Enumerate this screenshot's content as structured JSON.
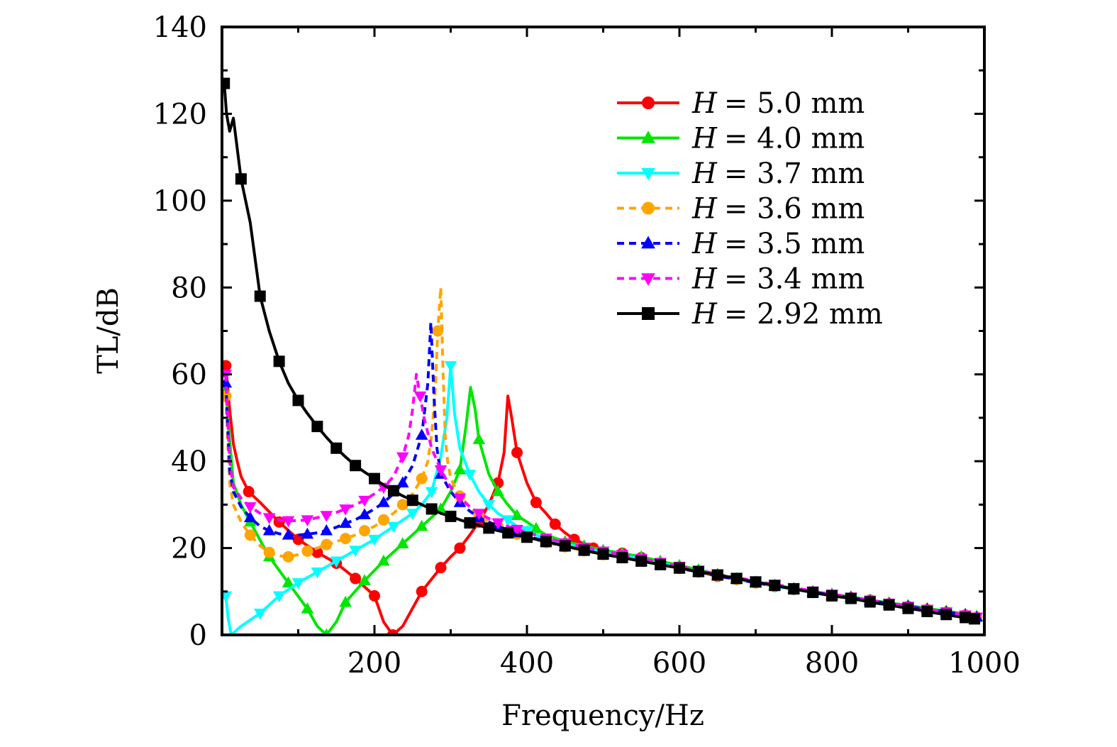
{
  "chart_data": {
    "type": "line",
    "title": "",
    "xlabel": "Frequency/Hz",
    "ylabel": "TL/dB",
    "xlim": [
      0,
      1000
    ],
    "ylim": [
      0,
      140
    ],
    "xticks": [
      200,
      400,
      600,
      800,
      1000
    ],
    "yticks": [
      0,
      20,
      40,
      60,
      80,
      100,
      120,
      140
    ],
    "grid": false,
    "legend_position": "top-right",
    "series": [
      {
        "name": "H = 5.0 mm",
        "name_var": "H",
        "name_value": "= 5.0 mm",
        "color": "#ff0000",
        "marker": "circle",
        "dash": "solid",
        "x": [
          5,
          10,
          15,
          20,
          25,
          35,
          50,
          75,
          100,
          125,
          150,
          175,
          200,
          212,
          224,
          237,
          262,
          287,
          300,
          312,
          325,
          337,
          350,
          362,
          370,
          375,
          380,
          387,
          400,
          412,
          425,
          437,
          450,
          462,
          475,
          487,
          500,
          525,
          550,
          575,
          600,
          625,
          650,
          675,
          700,
          725,
          750,
          775,
          800,
          825,
          850,
          875,
          900,
          925,
          950,
          975,
          990
        ],
        "y": [
          62,
          52,
          44,
          40,
          36.5,
          33,
          30.5,
          26,
          22,
          19,
          16.5,
          13,
          9,
          3,
          0,
          2,
          10,
          15.5,
          18,
          20,
          23,
          26,
          30,
          35,
          42,
          55,
          50,
          42,
          35,
          30.5,
          28,
          25.5,
          23.5,
          22,
          21,
          20,
          19.5,
          18.8,
          17.8,
          16.5,
          15.5,
          14.5,
          13.5,
          12.8,
          12,
          11.2,
          10.5,
          9.8,
          9.2,
          8.5,
          8,
          7.2,
          6.5,
          5.8,
          5.2,
          4.6,
          4
        ]
      },
      {
        "name": "H = 4.0 mm",
        "name_var": "H",
        "name_value": "= 4.0 mm",
        "color": "#00e600",
        "marker": "triangle-up",
        "dash": "solid",
        "x": [
          5,
          10,
          15,
          25,
          37,
          62,
          87,
          112,
          125,
          137,
          150,
          162,
          187,
          212,
          237,
          262,
          287,
          300,
          312,
          320,
          326,
          332,
          337,
          350,
          362,
          375,
          387,
          400,
          412,
          425,
          450,
          475,
          500,
          525,
          550,
          575,
          600,
          625,
          650,
          675,
          700,
          725,
          750,
          775,
          800,
          825,
          850,
          875,
          900,
          925,
          950,
          975,
          990
        ],
        "y": [
          56,
          45,
          35,
          30,
          26,
          18,
          12,
          6,
          2,
          0,
          3,
          7.5,
          12.5,
          17,
          21,
          25,
          29,
          33,
          38,
          48,
          57,
          52,
          45,
          37,
          33,
          30,
          27.5,
          26,
          24.5,
          23,
          21.5,
          20.5,
          19.5,
          18.8,
          18,
          17,
          16,
          15,
          14,
          13,
          12.2,
          11.5,
          10.7,
          10,
          9.4,
          8.8,
          8,
          7.4,
          6.8,
          6.1,
          5.5,
          4.8,
          4.3
        ]
      },
      {
        "name": "H = 3.7 mm",
        "name_var": "H",
        "name_value": "= 3.7 mm",
        "color": "#00ffff",
        "marker": "triangle-down",
        "dash": "solid",
        "x": [
          5,
          8,
          12,
          25,
          50,
          75,
          100,
          125,
          150,
          175,
          200,
          225,
          250,
          262,
          275,
          287,
          295,
          300,
          305,
          312,
          325,
          337,
          350,
          362,
          375,
          387,
          400,
          425,
          450,
          475,
          500,
          525,
          550,
          575,
          600,
          625,
          650,
          675,
          700,
          725,
          750,
          775,
          800,
          825,
          850,
          875,
          900,
          925,
          950,
          975,
          990
        ],
        "y": [
          9,
          4,
          0,
          2,
          5,
          9,
          12,
          14.5,
          17,
          19.5,
          22,
          25,
          28,
          30,
          33,
          41,
          50,
          62,
          51,
          43,
          37,
          33,
          30,
          28,
          26.5,
          25,
          24,
          22,
          21,
          20,
          19,
          18.3,
          17.5,
          16.5,
          15.5,
          14.5,
          13.7,
          12.8,
          12,
          11.2,
          10.5,
          9.8,
          9.2,
          8.5,
          7.8,
          7.2,
          6.5,
          5.8,
          5.2,
          4.5,
          4
        ]
      },
      {
        "name": "H = 3.6 mm",
        "name_var": "H",
        "name_value": "= 3.6 mm",
        "color": "#ffa500",
        "marker": "circle",
        "dash": "dash",
        "x": [
          5,
          10,
          15,
          25,
          37,
          50,
          62,
          75,
          87,
          100,
          112,
          125,
          137,
          150,
          162,
          175,
          187,
          200,
          212,
          225,
          237,
          250,
          262,
          270,
          275,
          280,
          283,
          287,
          290,
          293,
          296,
          300,
          312,
          325,
          337,
          350,
          362,
          375,
          387,
          400,
          425,
          450,
          475,
          500,
          525,
          550,
          575,
          600,
          625,
          650,
          675,
          700,
          725,
          750,
          775,
          800,
          825,
          850,
          875,
          900,
          925,
          950,
          975,
          990
        ],
        "y": [
          55,
          35,
          30,
          26,
          23,
          20.5,
          19,
          18.2,
          18,
          18.5,
          19.3,
          20,
          20.8,
          21.5,
          22.2,
          23,
          24,
          25,
          26.5,
          28,
          30,
          32.5,
          36,
          40,
          46,
          57,
          70,
          80,
          60,
          45,
          40,
          36,
          32,
          29.5,
          27.5,
          26,
          25,
          24,
          23.2,
          22.5,
          21.3,
          20.3,
          19.4,
          18.5,
          17.8,
          17,
          16.2,
          15.3,
          14.5,
          13.6,
          12.8,
          12,
          11.3,
          10.6,
          9.9,
          9.2,
          8.6,
          7.9,
          7.2,
          6.6,
          5.9,
          5.3,
          4.6,
          4.1
        ]
      },
      {
        "name": "H = 3.5 mm",
        "name_var": "H",
        "name_value": "= 3.5 mm",
        "color": "#0000ff",
        "marker": "triangle-up",
        "dash": "dash",
        "x": [
          5,
          10,
          15,
          25,
          37,
          50,
          62,
          75,
          87,
          100,
          112,
          125,
          137,
          150,
          162,
          175,
          187,
          200,
          212,
          225,
          237,
          250,
          262,
          270,
          274,
          278,
          282,
          287,
          300,
          312,
          325,
          337,
          350,
          362,
          375,
          387,
          400,
          425,
          450,
          475,
          500,
          525,
          550,
          575,
          600,
          625,
          650,
          675,
          700,
          725,
          750,
          775,
          800,
          825,
          850,
          875,
          900,
          925,
          950,
          975,
          990
        ],
        "y": [
          58,
          38,
          33,
          29.5,
          27,
          25,
          24,
          23.3,
          23,
          23,
          23.2,
          23.5,
          24,
          24.8,
          25.7,
          26.5,
          27.7,
          29,
          30.5,
          32.5,
          35,
          39,
          46,
          58,
          72,
          55,
          43,
          37,
          33,
          30.5,
          28.5,
          27,
          26,
          25,
          24.2,
          23.5,
          22.8,
          21.5,
          20.4,
          19.5,
          18.6,
          17.8,
          17,
          16.2,
          15.3,
          14.5,
          13.6,
          12.8,
          12,
          11.3,
          10.6,
          9.9,
          9.2,
          8.6,
          7.9,
          7.2,
          6.6,
          5.9,
          5.3,
          4.6,
          4.1
        ]
      },
      {
        "name": "H = 3.4 mm",
        "name_var": "H",
        "name_value": "= 3.4 mm",
        "color": "#ff00ff",
        "marker": "triangle-down",
        "dash": "dash",
        "x": [
          5,
          10,
          15,
          25,
          37,
          50,
          62,
          75,
          87,
          100,
          112,
          125,
          137,
          150,
          162,
          175,
          187,
          200,
          212,
          225,
          237,
          245,
          250,
          255,
          260,
          265,
          275,
          287,
          300,
          312,
          325,
          337,
          350,
          362,
          375,
          387,
          400,
          425,
          450,
          475,
          500,
          525,
          550,
          575,
          600,
          625,
          650,
          675,
          700,
          725,
          750,
          775,
          800,
          825,
          850,
          875,
          900,
          925,
          950,
          975,
          990
        ],
        "y": [
          60,
          40,
          34,
          31.5,
          29.5,
          28,
          27,
          26.5,
          26.3,
          26.3,
          26.5,
          27,
          27.5,
          28.2,
          29,
          30,
          31,
          32.5,
          34,
          36.5,
          41,
          46,
          52,
          60,
          55,
          50,
          43,
          38,
          34,
          31.5,
          29.5,
          28,
          26.8,
          25.8,
          25,
          24.3,
          23.6,
          22.3,
          21.2,
          20.2,
          19.3,
          18.5,
          17.6,
          16.7,
          15.8,
          14.9,
          14,
          13.2,
          12.4,
          11.6,
          10.9,
          10.1,
          9.4,
          8.7,
          8,
          7.3,
          6.6,
          5.9,
          5.3,
          4.6,
          4.1
        ]
      },
      {
        "name": "H = 2.92 mm",
        "name_var": "H",
        "name_value": "= 2.92 mm",
        "color": "#000000",
        "marker": "square",
        "dash": "solid",
        "x": [
          3,
          6,
          10,
          15,
          25,
          37,
          50,
          62,
          75,
          87,
          100,
          112,
          125,
          137,
          150,
          162,
          175,
          187,
          200,
          212,
          225,
          237,
          250,
          262,
          275,
          287,
          300,
          312,
          325,
          337,
          350,
          362,
          375,
          387,
          400,
          412,
          425,
          437,
          450,
          462,
          475,
          487,
          500,
          512,
          525,
          537,
          550,
          562,
          575,
          587,
          600,
          612,
          625,
          637,
          650,
          662,
          675,
          687,
          700,
          712,
          725,
          737,
          750,
          762,
          775,
          787,
          800,
          812,
          825,
          837,
          850,
          862,
          875,
          887,
          900,
          912,
          925,
          937,
          950,
          962,
          975,
          987
        ],
        "y": [
          127,
          120,
          116,
          119,
          105,
          95,
          78,
          70,
          63,
          58,
          54,
          51,
          48,
          45.5,
          43,
          41,
          39,
          37.5,
          36,
          34.5,
          33.2,
          32,
          31,
          30,
          29,
          28,
          27.3,
          26.5,
          25.8,
          25.2,
          24.6,
          24,
          23.5,
          23,
          22.5,
          22,
          21.5,
          21,
          20.5,
          20,
          19.5,
          19,
          18.6,
          18.2,
          17.8,
          17.4,
          17,
          16.6,
          16.2,
          15.8,
          15.4,
          15,
          14.6,
          14.2,
          13.8,
          13.4,
          13,
          12.6,
          12.2,
          11.8,
          11.4,
          11,
          10.6,
          10.2,
          9.8,
          9.4,
          9,
          8.7,
          8.4,
          8,
          7.6,
          7.2,
          6.9,
          6.5,
          6.1,
          5.8,
          5.4,
          5,
          4.7,
          4.3,
          4,
          3.7
        ]
      }
    ]
  }
}
